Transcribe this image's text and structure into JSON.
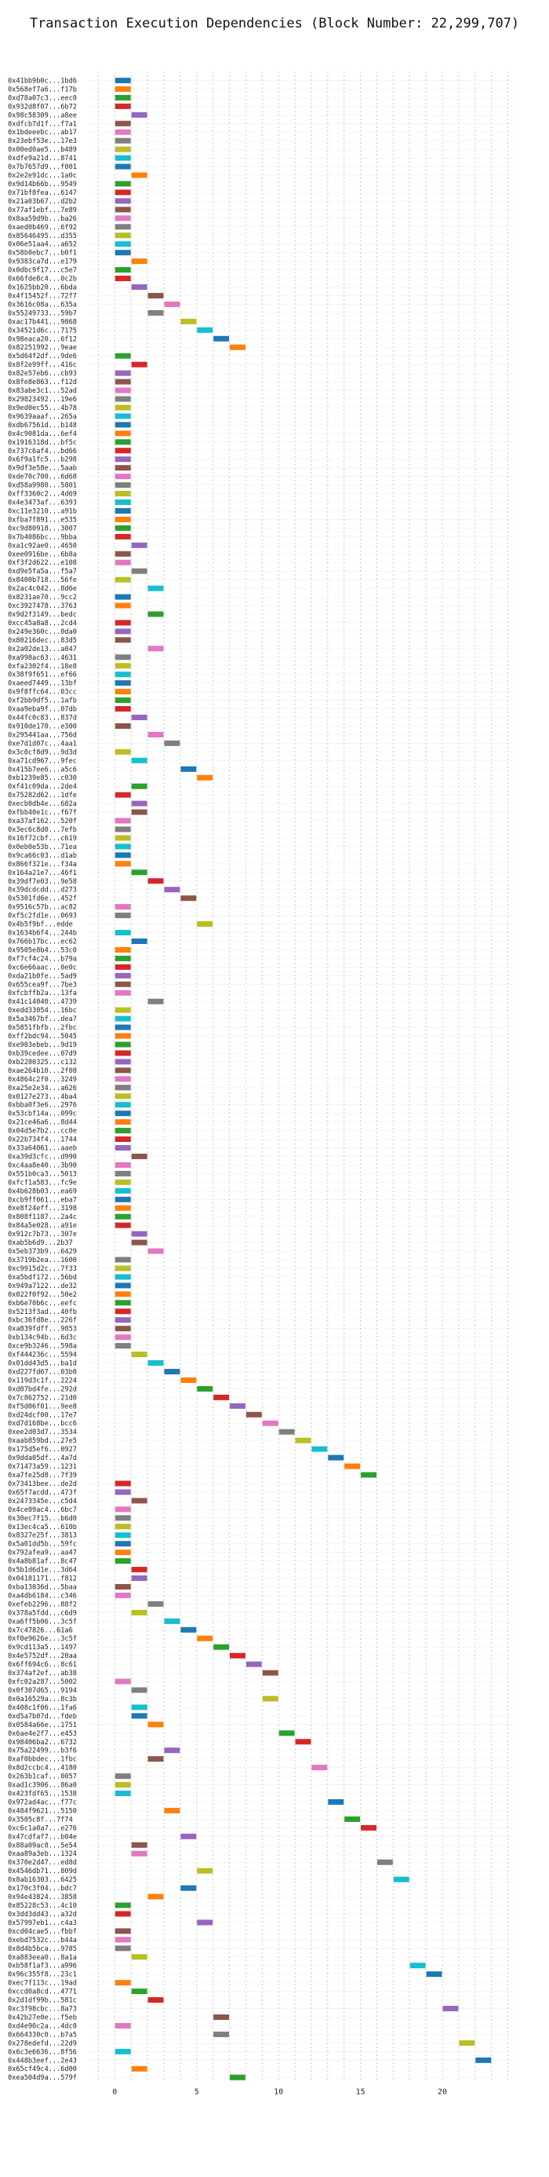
{
  "chart_data": {
    "type": "gantt",
    "title": "Transaction Execution Dependencies (Block Number: 22,299,707)",
    "xlim": [
      -1.5,
      24.5
    ],
    "xticks": [
      0,
      5,
      10,
      15,
      20
    ],
    "grid": true,
    "palette": [
      "#1f77b4",
      "#ff7f0e",
      "#2ca02c",
      "#d62728",
      "#9467bd",
      "#8c564b",
      "#e377c2",
      "#7f7f7f",
      "#bcbd22",
      "#17becf"
    ],
    "tasks": [
      {
        "label": "0x41bb9b0c...1bd6",
        "start": 0
      },
      {
        "label": "0x568ef7a6...f17b",
        "start": 0
      },
      {
        "label": "0xd78a07c3...eec0",
        "start": 0
      },
      {
        "label": "0x932d8f07...6b72",
        "start": 0
      },
      {
        "label": "0x98c58309...a8ee",
        "start": 1
      },
      {
        "label": "0xdfcb7d1f...f7a1",
        "start": 0
      },
      {
        "label": "0x1bdeeebc...ab17",
        "start": 0
      },
      {
        "label": "0x23ebf53e...17e3",
        "start": 0
      },
      {
        "label": "0x00ed0ae5...b489",
        "start": 0
      },
      {
        "label": "0xdfe9a21d...8741",
        "start": 0
      },
      {
        "label": "0x7b7657d9...f001",
        "start": 0
      },
      {
        "label": "0x2e2e91dc...1a0c",
        "start": 1
      },
      {
        "label": "0x9d14b66b...9549",
        "start": 0
      },
      {
        "label": "0x71bf8fea...6147",
        "start": 0
      },
      {
        "label": "0x21a03b67...d2b2",
        "start": 0
      },
      {
        "label": "0x77af1ebf...7e89",
        "start": 0
      },
      {
        "label": "0x8aa59d9b...ba26",
        "start": 0
      },
      {
        "label": "0xaed0b469...6f92",
        "start": 0
      },
      {
        "label": "0x85646495...d355",
        "start": 0
      },
      {
        "label": "0x06e51aa4...a652",
        "start": 0
      },
      {
        "label": "0x58b0ebc7...b0f1",
        "start": 0
      },
      {
        "label": "0x9383ca7d...e179",
        "start": 1
      },
      {
        "label": "0x0dbc9f17...c5e7",
        "start": 0
      },
      {
        "label": "0x66fde8c4...0c2b",
        "start": 0
      },
      {
        "label": "0x1625bb20...6bda",
        "start": 1
      },
      {
        "label": "0x4f15452f...72f7",
        "start": 2
      },
      {
        "label": "0x3616c08a...635a",
        "start": 3
      },
      {
        "label": "0x55249733...59b7",
        "start": 2
      },
      {
        "label": "0xac17b441...9868",
        "start": 4
      },
      {
        "label": "0x34521d6c...7175",
        "start": 5
      },
      {
        "label": "0x98eaca20...6f12",
        "start": 6
      },
      {
        "label": "0x82251992...9eae",
        "start": 7
      },
      {
        "label": "0x5d64f2df...9de6",
        "start": 0
      },
      {
        "label": "0x8f2e99ff...416c",
        "start": 1
      },
      {
        "label": "0x82e57eb6...cb93",
        "start": 0
      },
      {
        "label": "0x8fe8e863...f12d",
        "start": 0
      },
      {
        "label": "0x83abe3c1...52ad",
        "start": 0
      },
      {
        "label": "0x29823492...19e6",
        "start": 0
      },
      {
        "label": "0x9ed0ec55...4b78",
        "start": 0
      },
      {
        "label": "0x9639aaaf...265a",
        "start": 0
      },
      {
        "label": "0xdb67561d...b148",
        "start": 0
      },
      {
        "label": "0x4c9081da...6ef4",
        "start": 0
      },
      {
        "label": "0x1916318d...bf5c",
        "start": 0
      },
      {
        "label": "0x737c6af4...bd66",
        "start": 0
      },
      {
        "label": "0x6f9a1fc5...b298",
        "start": 0
      },
      {
        "label": "0x9df3e58e...5aab",
        "start": 0
      },
      {
        "label": "0xde70c700...6d68",
        "start": 0
      },
      {
        "label": "0xd58a9980...5801",
        "start": 0
      },
      {
        "label": "0xff3360c2...4d69",
        "start": 0
      },
      {
        "label": "0x4e3473af...6393",
        "start": 0
      },
      {
        "label": "0xc11e3210...a91b",
        "start": 0
      },
      {
        "label": "0xfba7f891...e535",
        "start": 0
      },
      {
        "label": "0xc9d80918...3007",
        "start": 0
      },
      {
        "label": "0x7b4086bc...9bba",
        "start": 0
      },
      {
        "label": "0xa1c92ae0...4650",
        "start": 1
      },
      {
        "label": "0xee0916be...6b8a",
        "start": 0
      },
      {
        "label": "0xf3f2d622...e108",
        "start": 0
      },
      {
        "label": "0xd9e5fa5a...f5a7",
        "start": 1
      },
      {
        "label": "0x8400b718...56fe",
        "start": 0
      },
      {
        "label": "0x2ac4c042...8d6e",
        "start": 2
      },
      {
        "label": "0x8231ae70...9cc2",
        "start": 0
      },
      {
        "label": "0xc3927478...3763",
        "start": 0
      },
      {
        "label": "0x9d2f3149...bedc",
        "start": 2
      },
      {
        "label": "0xcc45a8a8...2cd4",
        "start": 0
      },
      {
        "label": "0x249e360c...0da0",
        "start": 0
      },
      {
        "label": "0x80216dec...83d5",
        "start": 0
      },
      {
        "label": "0x2a02de13...a047",
        "start": 2
      },
      {
        "label": "0xa998ac63...4631",
        "start": 0
      },
      {
        "label": "0xfa2302f4...18e8",
        "start": 0
      },
      {
        "label": "0x38f9f651...ef66",
        "start": 0
      },
      {
        "label": "0xaeed7449...13bf",
        "start": 0
      },
      {
        "label": "0x9f8ffc64...03cc",
        "start": 0
      },
      {
        "label": "0xf2bb9df5...1afb",
        "start": 0
      },
      {
        "label": "0xaa9eba9f...07db",
        "start": 0
      },
      {
        "label": "0x44fc0c83...837d",
        "start": 1
      },
      {
        "label": "0x910de170...e300",
        "start": 0
      },
      {
        "label": "0x295441aa...756d",
        "start": 2
      },
      {
        "label": "0xe7d1d07c...4aa1",
        "start": 3
      },
      {
        "label": "0x3c0cf8d9...9d3d",
        "start": 0
      },
      {
        "label": "0xa71cd967...9fec",
        "start": 1
      },
      {
        "label": "0x415b7ee6...a5c6",
        "start": 4
      },
      {
        "label": "0xb1239e85...c030",
        "start": 5
      },
      {
        "label": "0xf41c09da...2de4",
        "start": 1
      },
      {
        "label": "0x75282d62...1dfe",
        "start": 0
      },
      {
        "label": "0xecb0db4e...682a",
        "start": 1
      },
      {
        "label": "0xfbb40e1c...f67f",
        "start": 1
      },
      {
        "label": "0xa37af162...520f",
        "start": 0
      },
      {
        "label": "0x3ec6c8d0...7efb",
        "start": 0
      },
      {
        "label": "0x16f72cbf...c619",
        "start": 0
      },
      {
        "label": "0x0eb0e53b...71ea",
        "start": 0
      },
      {
        "label": "0x9ca66c03...d1ab",
        "start": 0
      },
      {
        "label": "0x866f321e...f34a",
        "start": 0
      },
      {
        "label": "0x164a21e7...46f1",
        "start": 1
      },
      {
        "label": "0x39df7e03...9e58",
        "start": 2
      },
      {
        "label": "0x39dcdcdd...d273",
        "start": 3
      },
      {
        "label": "0x5301fd6e...452f",
        "start": 4
      },
      {
        "label": "0x9516c57b...ac82",
        "start": 0
      },
      {
        "label": "0xf5c2fd1e...0693",
        "start": 0
      },
      {
        "label": "0x4b5f9bf...edde",
        "start": 5
      },
      {
        "label": "0x1634b6f4...244b",
        "start": 0
      },
      {
        "label": "0x766b17bc...ec62",
        "start": 1
      },
      {
        "label": "0x9505e8b4...53c0",
        "start": 0
      },
      {
        "label": "0xf7cf4c24...b79a",
        "start": 0
      },
      {
        "label": "0xc6e66aac...0e0c",
        "start": 0
      },
      {
        "label": "0xda21b0fe...5ad9",
        "start": 0
      },
      {
        "label": "0x655cea9f...7be3",
        "start": 0
      },
      {
        "label": "0xfcbffb2a...13fa",
        "start": 0
      },
      {
        "label": "0x41c14040...4739",
        "start": 2
      },
      {
        "label": "0xedd33054...16bc",
        "start": 0
      },
      {
        "label": "0x5a3467bf...dea7",
        "start": 0
      },
      {
        "label": "0x5851fbfb...2fbc",
        "start": 0
      },
      {
        "label": "0xff2bdc94...5045",
        "start": 0
      },
      {
        "label": "0xe903ebeb...9d19",
        "start": 0
      },
      {
        "label": "0xb39cedee...07d9",
        "start": 0
      },
      {
        "label": "0xb2280325...c132",
        "start": 0
      },
      {
        "label": "0xae264b10...2f08",
        "start": 0
      },
      {
        "label": "0x4864c2f0...3249",
        "start": 0
      },
      {
        "label": "0xa25e2e34...a626",
        "start": 0
      },
      {
        "label": "0x0127e273...4ba4",
        "start": 0
      },
      {
        "label": "0xbba0f3e6...2976",
        "start": 0
      },
      {
        "label": "0x53cbf14a...099c",
        "start": 0
      },
      {
        "label": "0x21ce46a6...8d44",
        "start": 0
      },
      {
        "label": "0x04d5e7b2...cc0e",
        "start": 0
      },
      {
        "label": "0x22b734f4...1744",
        "start": 0
      },
      {
        "label": "0x33a64061...aaeb",
        "start": 0
      },
      {
        "label": "0xa39d3cfc...d990",
        "start": 1
      },
      {
        "label": "0xc4aa8e40...3b90",
        "start": 0
      },
      {
        "label": "0x551b0ca3...5013",
        "start": 0
      },
      {
        "label": "0xfcf1a583...fc9e",
        "start": 0
      },
      {
        "label": "0x4b628b03...ea69",
        "start": 0
      },
      {
        "label": "0xcb9ff061...eba7",
        "start": 0
      },
      {
        "label": "0xe8f24eff...3198",
        "start": 0
      },
      {
        "label": "0x808f1187...2a4c",
        "start": 0
      },
      {
        "label": "0x84a5e028...a91e",
        "start": 0
      },
      {
        "label": "0x912c7b73...307e",
        "start": 1
      },
      {
        "label": "0xab5b6d9...2b37",
        "start": 1
      },
      {
        "label": "0x5eb373b9...6429",
        "start": 2
      },
      {
        "label": "0x3719b2ea...1600",
        "start": 0
      },
      {
        "label": "0xc9915d2c...7f33",
        "start": 0
      },
      {
        "label": "0xa5bdf172...56bd",
        "start": 0
      },
      {
        "label": "0x949a7122...de32",
        "start": 0
      },
      {
        "label": "0x022f0f92...50e2",
        "start": 0
      },
      {
        "label": "0xb6e70b6c...eefc",
        "start": 0
      },
      {
        "label": "0x5213f3ad...40fb",
        "start": 0
      },
      {
        "label": "0xbc36fd8e...226f",
        "start": 0
      },
      {
        "label": "0xa839fdff...9853",
        "start": 0
      },
      {
        "label": "0xb134c94b...6d3c",
        "start": 0
      },
      {
        "label": "0xce9b3246...598a",
        "start": 0
      },
      {
        "label": "0xf444236c...5594",
        "start": 1
      },
      {
        "label": "0x01dd43d5...ba1d",
        "start": 2
      },
      {
        "label": "0xd227fd67...03b0",
        "start": 3
      },
      {
        "label": "0x119d3c1f...2224",
        "start": 4
      },
      {
        "label": "0xd07bd4fe...292d",
        "start": 5
      },
      {
        "label": "0x7c862752...21d0",
        "start": 6
      },
      {
        "label": "0xf5d06f01...9ee8",
        "start": 7
      },
      {
        "label": "0xd24dcf00...17e7",
        "start": 8
      },
      {
        "label": "0xd7d168be...bcc6",
        "start": 9
      },
      {
        "label": "0xee2d03d7...3534",
        "start": 10
      },
      {
        "label": "0xaab859bd...27e5",
        "start": 11
      },
      {
        "label": "0x175d5ef6...0927",
        "start": 12
      },
      {
        "label": "0x9dda05df...4a7d",
        "start": 13
      },
      {
        "label": "0x71473a59...1231",
        "start": 14
      },
      {
        "label": "0xa7fe25d8...7f39",
        "start": 15
      },
      {
        "label": "0x73413bee...de2d",
        "start": 0
      },
      {
        "label": "0x65f7acdd...473f",
        "start": 0
      },
      {
        "label": "0x2473345e...c5d4",
        "start": 1
      },
      {
        "label": "0x4ce09ac4...6bc7",
        "start": 0
      },
      {
        "label": "0x30ec7f15...b6d0",
        "start": 0
      },
      {
        "label": "0x13ec4ca5...610b",
        "start": 0
      },
      {
        "label": "0x8327e25f...3813",
        "start": 0
      },
      {
        "label": "0x5a01dd5b...59fc",
        "start": 0
      },
      {
        "label": "0x792afea9...aa47",
        "start": 0
      },
      {
        "label": "0x4a8b81af...8c47",
        "start": 0
      },
      {
        "label": "0x5b1d6d1e...3d64",
        "start": 1
      },
      {
        "label": "0x04181171...f812",
        "start": 1
      },
      {
        "label": "0xba13036d...5baa",
        "start": 0
      },
      {
        "label": "0xa4db6184...c346",
        "start": 0
      },
      {
        "label": "0xefeb2296...88f2",
        "start": 2
      },
      {
        "label": "0x378a5fdd...c6d9",
        "start": 1
      },
      {
        "label": "0xa6ff5b06...3c5f",
        "start": 3
      },
      {
        "label": "0x7c47826...61a6",
        "start": 4
      },
      {
        "label": "0xf0e9626e...3c5f",
        "start": 5
      },
      {
        "label": "0x9cd113a5...1497",
        "start": 6
      },
      {
        "label": "0x4e5752df...20aa",
        "start": 7
      },
      {
        "label": "0x6ff694c6...8c61",
        "start": 8
      },
      {
        "label": "0x374af2ef...ab38",
        "start": 9
      },
      {
        "label": "0xfc02a287...5002",
        "start": 0
      },
      {
        "label": "0x0f307d65...9194",
        "start": 1
      },
      {
        "label": "0x0a16529a...8c3b",
        "start": 9
      },
      {
        "label": "0x408c1f06...1fa6",
        "start": 1
      },
      {
        "label": "0xd5a7b07d...fdeb",
        "start": 1
      },
      {
        "label": "0x0584a66e...1751",
        "start": 2
      },
      {
        "label": "0x6ae4e2f7...e453",
        "start": 10
      },
      {
        "label": "0x98406ba2...6732",
        "start": 11
      },
      {
        "label": "0x75a22499...b3f6",
        "start": 3
      },
      {
        "label": "0xaf0bbdec...1fbc",
        "start": 2
      },
      {
        "label": "0x8d2ccbc4...4180",
        "start": 12
      },
      {
        "label": "0x263b1caf...0057",
        "start": 0
      },
      {
        "label": "0xad1c3906...86a0",
        "start": 0
      },
      {
        "label": "0x423fdf65...1538",
        "start": 0
      },
      {
        "label": "0x972ad4ac...f77c",
        "start": 13
      },
      {
        "label": "0x484f9621...5150",
        "start": 3
      },
      {
        "label": "0x3505c8f...7f74",
        "start": 14
      },
      {
        "label": "0xc6c1a0a7...e276",
        "start": 15
      },
      {
        "label": "0x47cdfaf7...b04e",
        "start": 4
      },
      {
        "label": "0x88a09ac8...5e54",
        "start": 1
      },
      {
        "label": "0xaa89a3eb...1324",
        "start": 1
      },
      {
        "label": "0x370e2d47...ed8d",
        "start": 16
      },
      {
        "label": "0x4546db71...809d",
        "start": 5
      },
      {
        "label": "0x8ab16303...6425",
        "start": 17
      },
      {
        "label": "0x170c3f04...bdc7",
        "start": 4
      },
      {
        "label": "0x94e43824...3858",
        "start": 2
      },
      {
        "label": "0x85228c53...4c10",
        "start": 0
      },
      {
        "label": "0x3dd3dd43...a32d",
        "start": 0
      },
      {
        "label": "0x57997eb1...c4a3",
        "start": 5
      },
      {
        "label": "0xcd04cae5...fbbf",
        "start": 0
      },
      {
        "label": "0xebd7532c...b44a",
        "start": 0
      },
      {
        "label": "0x8d4b5bca...9785",
        "start": 0
      },
      {
        "label": "0xa883eea0...8a1a",
        "start": 1
      },
      {
        "label": "0xb58f1af3...a996",
        "start": 18
      },
      {
        "label": "0x96c355f8...23c1",
        "start": 19
      },
      {
        "label": "0xec7f113c...19ad",
        "start": 0
      },
      {
        "label": "0xccd0a8cd...4771",
        "start": 1
      },
      {
        "label": "0x2d1df99b...581c",
        "start": 2
      },
      {
        "label": "0xc3f98cbc...8a73",
        "start": 20
      },
      {
        "label": "0x42b27e0e...f5eb",
        "start": 6
      },
      {
        "label": "0xd4e90c2a...4dc0",
        "start": 0
      },
      {
        "label": "0x664330c0...b7a5",
        "start": 6
      },
      {
        "label": "0x278edefd...22d9",
        "start": 21
      },
      {
        "label": "0x6c3e6636...8f56",
        "start": 0
      },
      {
        "label": "0x448b3eef...2e43",
        "start": 22
      },
      {
        "label": "0x65cf49c4...6d00",
        "start": 1
      },
      {
        "label": "0xea504d9a...579f",
        "start": 7
      }
    ]
  }
}
